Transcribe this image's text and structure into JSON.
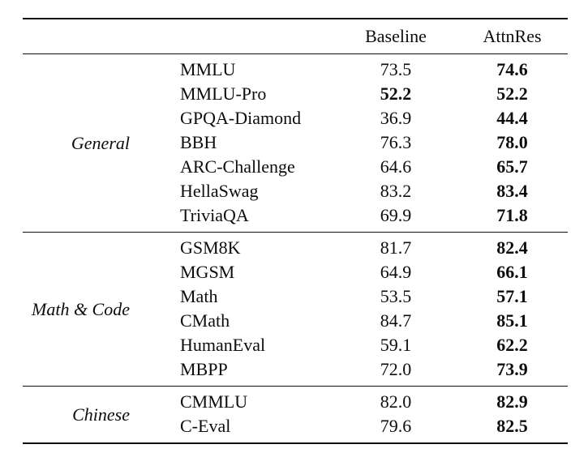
{
  "page": {
    "background": "#ffffff",
    "text_color": "#0d0d0d",
    "rule_color": "#101010"
  },
  "table": {
    "header": {
      "baseline_label": "Baseline",
      "attnres_label": "AttnRes"
    },
    "sections": [
      {
        "category": "General",
        "rows": [
          {
            "benchmark": "MMLU",
            "baseline": "73.5",
            "attnres": "74.6",
            "bold": [
              "attnres"
            ]
          },
          {
            "benchmark": "MMLU-Pro",
            "baseline": "52.2",
            "attnres": "52.2",
            "bold": [
              "baseline",
              "attnres"
            ]
          },
          {
            "benchmark": "GPQA-Diamond",
            "baseline": "36.9",
            "attnres": "44.4",
            "bold": [
              "attnres"
            ]
          },
          {
            "benchmark": "BBH",
            "baseline": "76.3",
            "attnres": "78.0",
            "bold": [
              "attnres"
            ]
          },
          {
            "benchmark": "ARC-Challenge",
            "baseline": "64.6",
            "attnres": "65.7",
            "bold": [
              "attnres"
            ]
          },
          {
            "benchmark": "HellaSwag",
            "baseline": "83.2",
            "attnres": "83.4",
            "bold": [
              "attnres"
            ]
          },
          {
            "benchmark": "TriviaQA",
            "baseline": "69.9",
            "attnres": "71.8",
            "bold": [
              "attnres"
            ]
          }
        ]
      },
      {
        "category": "Math & Code",
        "rows": [
          {
            "benchmark": "GSM8K",
            "baseline": "81.7",
            "attnres": "82.4",
            "bold": [
              "attnres"
            ]
          },
          {
            "benchmark": "MGSM",
            "baseline": "64.9",
            "attnres": "66.1",
            "bold": [
              "attnres"
            ]
          },
          {
            "benchmark": "Math",
            "baseline": "53.5",
            "attnres": "57.1",
            "bold": [
              "attnres"
            ]
          },
          {
            "benchmark": "CMath",
            "baseline": "84.7",
            "attnres": "85.1",
            "bold": [
              "attnres"
            ]
          },
          {
            "benchmark": "HumanEval",
            "baseline": "59.1",
            "attnres": "62.2",
            "bold": [
              "attnres"
            ]
          },
          {
            "benchmark": "MBPP",
            "baseline": "72.0",
            "attnres": "73.9",
            "bold": [
              "attnres"
            ]
          }
        ]
      },
      {
        "category": "Chinese",
        "rows": [
          {
            "benchmark": "CMMLU",
            "baseline": "82.0",
            "attnres": "82.9",
            "bold": [
              "attnres"
            ]
          },
          {
            "benchmark": "C-Eval",
            "baseline": "79.6",
            "attnres": "82.5",
            "bold": [
              "attnres"
            ]
          }
        ]
      }
    ]
  }
}
